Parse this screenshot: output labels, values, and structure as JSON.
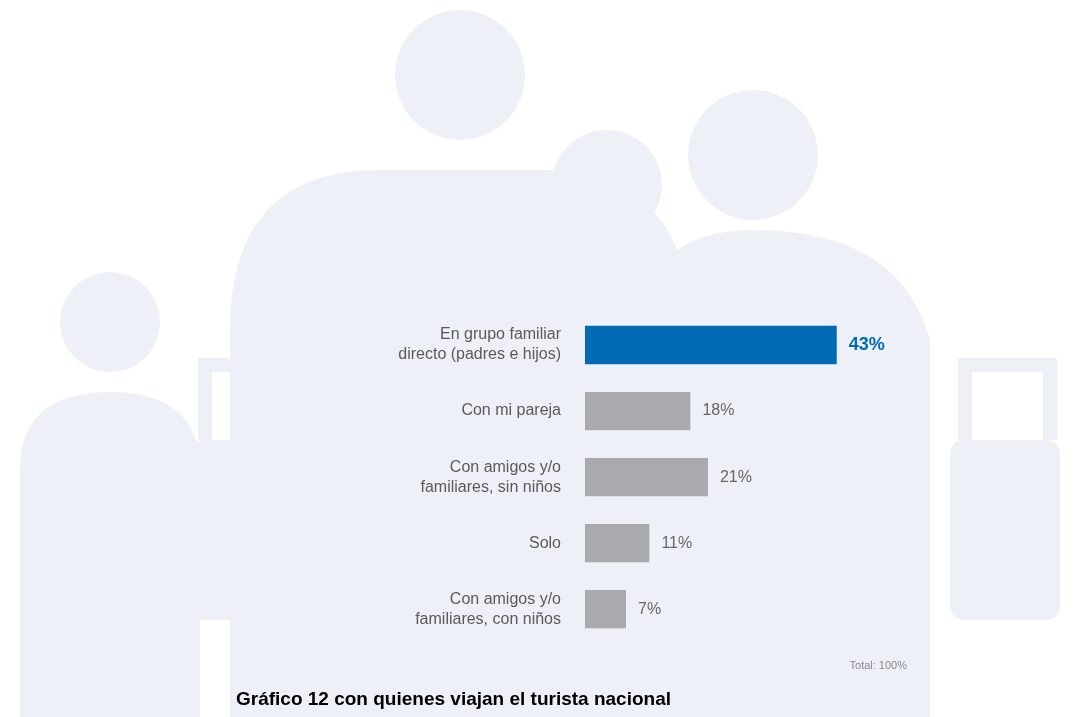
{
  "chart_data": {
    "type": "bar",
    "orientation": "horizontal",
    "title": "Gráfico 12 con quienes viajan el turista nacional",
    "categories": [
      "En grupo familiar directo (padres e hijos)",
      "Con mi pareja",
      "Con amigos y/o familiares, sin niños",
      "Solo",
      "Con amigos y/o familiares, con niños"
    ],
    "values": [
      43,
      18,
      21,
      11,
      7
    ],
    "value_labels": [
      "43%",
      "18%",
      "21%",
      "11%",
      "7%"
    ],
    "colors": [
      "#006bb3",
      "#a9aaad",
      "#a9aaad",
      "#a9aaad",
      "#a9aaad"
    ],
    "xlim": [
      0,
      55
    ],
    "grid": false,
    "data_labels": true,
    "tick_labels": "y",
    "annotations": [
      "Total: 100%"
    ]
  }
}
